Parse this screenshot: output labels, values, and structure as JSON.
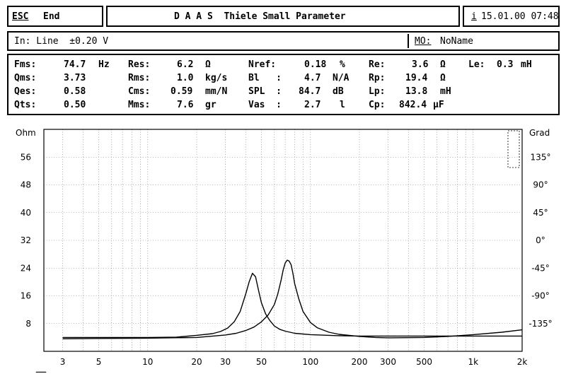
{
  "header": {
    "esc_label": "ESC",
    "end_label": "End",
    "title": "D A A S  Thiele Small Parameter",
    "info_icon": "i",
    "datetime": "15.01.00 07:48"
  },
  "input_bar": {
    "input_text": "In: Line  ±0.20 V",
    "mo_label": "MO:",
    "mo_value": "NoName"
  },
  "params": {
    "col1": [
      {
        "label": "Fms:",
        "value": "74.7",
        "unit": "Hz"
      },
      {
        "label": "Qms:",
        "value": "3.73",
        "unit": ""
      },
      {
        "label": "Qes:",
        "value": "0.58",
        "unit": ""
      },
      {
        "label": "Qts:",
        "value": "0.50",
        "unit": ""
      }
    ],
    "col2": [
      {
        "label": "Res:",
        "value": "6.2",
        "unit": "Ω"
      },
      {
        "label": "Rms:",
        "value": "1.0",
        "unit": "kg/s"
      },
      {
        "label": "Cms:",
        "value": "0.59",
        "unit": "mm/N"
      },
      {
        "label": "Mms:",
        "value": "7.6",
        "unit": "gr"
      }
    ],
    "col3": [
      {
        "label": "Nref:",
        "value": "0.18",
        "unit": "%"
      },
      {
        "label": "Bl   :",
        "value": "4.7",
        "unit": "N/A"
      },
      {
        "label": "SPL  :",
        "value": "84.7",
        "unit": "dB"
      },
      {
        "label": "Vas  :",
        "value": "2.7",
        "unit": "l"
      }
    ],
    "col4": [
      {
        "label": "Re:",
        "value": "3.6",
        "unit": "Ω"
      },
      {
        "label": "Rp:",
        "value": "19.4",
        "unit": "Ω"
      },
      {
        "label": "Lp:",
        "value": "13.8",
        "unit": "mH"
      },
      {
        "label": "Cp:",
        "value": "842.4",
        "unit": "µF"
      }
    ],
    "le": {
      "label": "Le:",
      "value": "0.3",
      "unit": "mH"
    }
  },
  "chart_data": {
    "type": "line",
    "ylabel": "Ohm",
    "y2label": "Grad",
    "xscale": "log",
    "xlim": [
      2.3,
      2000
    ],
    "ylim": [
      0,
      64
    ],
    "y2lim": [
      -180,
      180
    ],
    "grid": true,
    "x_ticks": [
      "3",
      "5",
      "10",
      "20",
      "30",
      "50",
      "100",
      "200",
      "300",
      "500",
      "1k",
      "2k"
    ],
    "x_tick_values": [
      3,
      5,
      10,
      20,
      30,
      50,
      100,
      200,
      300,
      500,
      1000,
      2000
    ],
    "y_ticks": [
      8,
      16,
      24,
      32,
      40,
      48,
      56
    ],
    "y2_ticks": [
      "-135°",
      "-90°",
      "-45°",
      "0°",
      "45°",
      "90°",
      "135°"
    ],
    "y2_tick_values": [
      -135,
      -90,
      -45,
      0,
      45,
      90,
      135
    ],
    "legend_marker": "—",
    "series": [
      {
        "x": [
          3,
          5,
          10,
          15,
          20,
          25,
          28,
          31,
          34,
          37,
          40,
          42,
          44,
          46,
          48,
          50,
          53,
          56,
          60,
          65,
          70,
          80,
          100,
          130,
          150,
          200,
          300,
          500,
          1000,
          2000
        ],
        "values": [
          4.0,
          4.0,
          4.0,
          4.1,
          4.6,
          5.1,
          5.7,
          6.7,
          8.5,
          11.5,
          16.5,
          20.0,
          22.5,
          21.5,
          17.5,
          14.0,
          10.8,
          9.0,
          7.3,
          6.3,
          5.8,
          5.2,
          4.8,
          4.6,
          4.5,
          4.4,
          4.4,
          4.4,
          4.4,
          4.4
        ]
      },
      {
        "x": [
          3,
          5,
          10,
          20,
          30,
          35,
          40,
          45,
          50,
          55,
          60,
          63,
          66,
          68,
          70,
          72,
          74,
          76,
          78,
          80,
          85,
          90,
          100,
          110,
          130,
          150,
          200,
          250,
          300,
          500,
          700,
          1000,
          1500,
          2000
        ],
        "values": [
          3.6,
          3.7,
          3.8,
          4.0,
          4.7,
          5.2,
          6.0,
          7.0,
          8.5,
          10.5,
          13.5,
          16.5,
          20.5,
          23.5,
          25.5,
          26.3,
          26.0,
          25.0,
          22.5,
          19.5,
          15.0,
          11.5,
          8.3,
          6.8,
          5.5,
          4.9,
          4.3,
          4.0,
          3.9,
          4.0,
          4.3,
          4.8,
          5.5,
          6.2
        ]
      }
    ]
  }
}
